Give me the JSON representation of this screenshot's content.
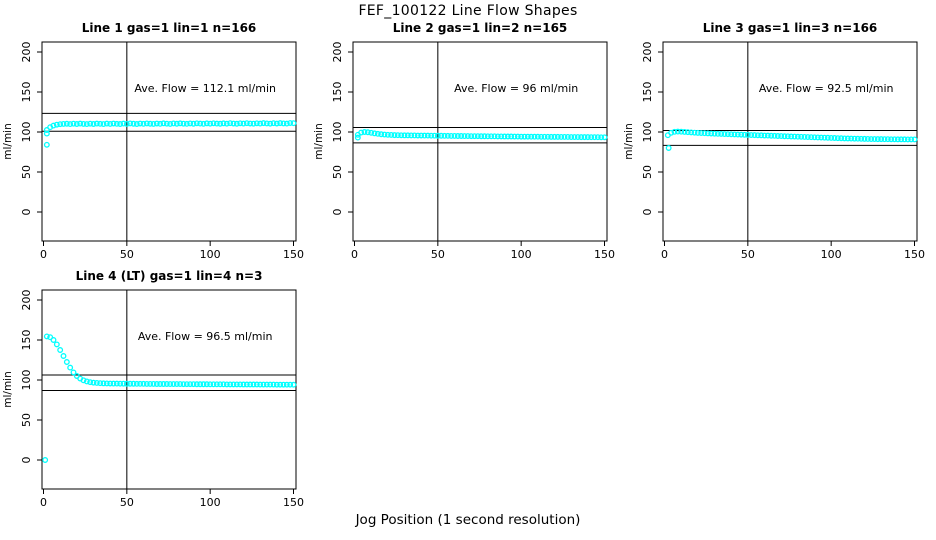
{
  "page": {
    "title": "FEF_100122  Line Flow Shapes",
    "xlabel": "Jog Position (1 second resolution)",
    "background": "#ffffff",
    "axis_color": "#000000",
    "point_color": "#00ffff"
  },
  "chart_data": [
    {
      "type": "scatter",
      "title": "Line 1 gas=1 lin=1 n=166",
      "annotation": "Ave. Flow =  112.1  ml/min",
      "ave_flow": 112.1,
      "ylabel": "ml/min",
      "xticks": [
        0,
        50,
        100,
        150
      ],
      "yticks": [
        0,
        50,
        100,
        150,
        200
      ],
      "ylim": [
        0,
        200
      ],
      "xlim": [
        0,
        150
      ],
      "hlines": [
        123.3,
        100.9
      ],
      "vline": 50,
      "x0": 2,
      "xstep": 2,
      "y": [
        102.5,
        106.0,
        108.0,
        109.2,
        109.8,
        110.1,
        110.3,
        109.9,
        110.4,
        110.0,
        110.5,
        110.1,
        109.9,
        110.4,
        110.0,
        110.5,
        110.2,
        109.9,
        110.5,
        110.1,
        110.6,
        110.2,
        110.0,
        110.5,
        110.1,
        110.7,
        110.3,
        110.0,
        110.6,
        110.2,
        110.7,
        110.3,
        110.1,
        110.6,
        110.2,
        110.8,
        110.4,
        110.1,
        110.7,
        110.3,
        110.8,
        110.4,
        110.2,
        110.7,
        110.3,
        110.9,
        110.5,
        110.2,
        110.8,
        110.4,
        110.9,
        110.5,
        110.3,
        110.8,
        110.4,
        111.0,
        110.6,
        110.3,
        110.9,
        110.5,
        111.0,
        110.6,
        110.4,
        110.9,
        110.5,
        111.1,
        110.7,
        110.4,
        111.0,
        110.6,
        111.1,
        110.7,
        110.5,
        111.2,
        111.0
      ],
      "outliers": [
        [
          2,
          84
        ],
        [
          2,
          98
        ]
      ]
    },
    {
      "type": "scatter",
      "title": "Line 2 gas=1 lin=2 n=165",
      "annotation": "Ave. Flow =  96  ml/min",
      "ave_flow": 96,
      "ylabel": "ml/min",
      "xticks": [
        0,
        50,
        100,
        150
      ],
      "yticks": [
        0,
        50,
        100,
        150,
        200
      ],
      "ylim": [
        0,
        200
      ],
      "xlim": [
        0,
        150
      ],
      "hlines": [
        105.6,
        86.4
      ],
      "vline": 50,
      "x0": 2,
      "xstep": 2,
      "y": [
        96.5,
        99.3,
        100.0,
        99.7,
        99.0,
        98.3,
        97.7,
        97.2,
        96.8,
        96.5,
        96.3,
        96.1,
        96.0,
        95.9,
        95.8,
        95.8,
        95.7,
        95.7,
        95.6,
        95.6,
        95.5,
        95.5,
        95.4,
        95.4,
        95.3,
        95.3,
        95.2,
        95.2,
        95.1,
        95.1,
        95.0,
        95.0,
        94.9,
        94.9,
        94.8,
        94.8,
        94.8,
        94.7,
        94.7,
        94.6,
        94.6,
        94.6,
        94.5,
        94.5,
        94.4,
        94.4,
        94.4,
        94.3,
        94.3,
        94.2,
        94.2,
        94.2,
        94.1,
        94.1,
        94.1,
        94.0,
        94.0,
        94.0,
        93.9,
        93.9,
        93.9,
        93.8,
        93.8,
        93.8,
        93.7,
        93.7,
        93.7,
        93.6,
        93.6,
        93.6,
        93.5,
        93.5,
        93.5,
        93.4,
        93.4
      ],
      "outliers": [
        [
          2,
          93
        ]
      ]
    },
    {
      "type": "scatter",
      "title": "Line 3 gas=1 lin=3 n=166",
      "annotation": "Ave. Flow =  92.5  ml/min",
      "ave_flow": 92.5,
      "ylabel": "ml/min",
      "xticks": [
        0,
        50,
        100,
        150
      ],
      "yticks": [
        0,
        50,
        100,
        150,
        200
      ],
      "ylim": [
        0,
        200
      ],
      "xlim": [
        0,
        150
      ],
      "hlines": [
        101.8,
        83.3
      ],
      "vline": 50,
      "x0": 2,
      "xstep": 2,
      "y": [
        96.0,
        99.0,
        100.2,
        100.5,
        100.4,
        100.1,
        99.8,
        99.5,
        99.2,
        98.9,
        98.7,
        98.5,
        98.3,
        98.1,
        97.9,
        97.7,
        97.6,
        97.4,
        97.3,
        97.1,
        97.0,
        96.8,
        96.7,
        96.5,
        96.4,
        96.2,
        96.1,
        95.9,
        95.8,
        95.6,
        95.5,
        95.3,
        95.2,
        95.0,
        94.9,
        94.7,
        94.6,
        94.4,
        94.3,
        94.1,
        94.0,
        93.8,
        93.7,
        93.5,
        93.4,
        93.2,
        93.1,
        92.9,
        92.8,
        92.6,
        92.5,
        92.3,
        92.2,
        92.0,
        91.9,
        91.8,
        91.7,
        91.6,
        91.5,
        91.4,
        91.3,
        91.2,
        91.2,
        91.1,
        91.1,
        91.0,
        91.0,
        90.9,
        90.9,
        90.8,
        90.8,
        90.8,
        90.7,
        90.7,
        90.7
      ],
      "outliers": [
        [
          2.5,
          80
        ]
      ]
    },
    {
      "type": "scatter",
      "title": "Line 4 (LT) gas=1 lin=4 n=3",
      "annotation": "Ave. Flow =  96.5  ml/min",
      "ave_flow": 96.5,
      "ylabel": "ml/min",
      "xticks": [
        0,
        50,
        100,
        150
      ],
      "yticks": [
        0,
        50,
        100,
        150,
        200
      ],
      "ylim": [
        0,
        200
      ],
      "xlim": [
        0,
        150
      ],
      "hlines": [
        106.2,
        86.9
      ],
      "vline": 50,
      "x0": 2,
      "xstep": 2,
      "y": [
        154.5,
        153.5,
        150.0,
        144.5,
        137.5,
        130.0,
        122.5,
        115.5,
        109.5,
        105.0,
        101.8,
        99.6,
        98.2,
        97.3,
        96.7,
        96.3,
        96.0,
        95.8,
        95.7,
        95.6,
        95.5,
        95.5,
        95.4,
        95.4,
        95.3,
        95.3,
        95.3,
        95.2,
        95.2,
        95.2,
        95.1,
        95.1,
        95.1,
        95.0,
        95.0,
        95.0,
        95.0,
        94.9,
        94.9,
        94.9,
        94.9,
        94.8,
        94.8,
        94.8,
        94.8,
        94.7,
        94.7,
        94.7,
        94.7,
        94.6,
        94.6,
        94.6,
        94.6,
        94.6,
        94.5,
        94.5,
        94.5,
        94.5,
        94.5,
        94.4,
        94.4,
        94.4,
        94.4,
        94.4,
        94.3,
        94.3,
        94.3,
        94.3,
        94.3,
        94.2,
        94.2,
        94.2,
        94.2,
        94.2,
        94.1
      ],
      "outliers": [
        [
          1,
          0
        ]
      ]
    }
  ]
}
